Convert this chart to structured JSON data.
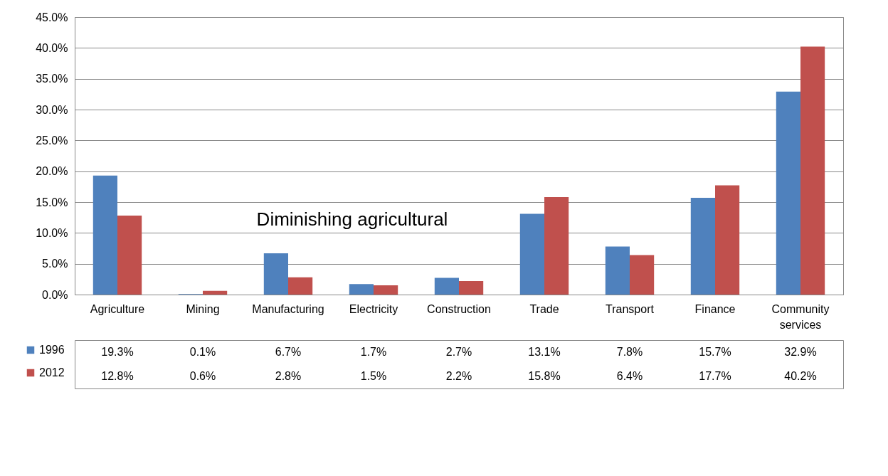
{
  "chart_data": {
    "type": "bar",
    "categories": [
      "Agriculture",
      "Mining",
      "Manufacturing",
      "Electricity",
      "Construction",
      "Trade",
      "Transport",
      "Finance",
      "Community services"
    ],
    "series": [
      {
        "name": "1996",
        "color": "#4f81bd",
        "values": [
          19.3,
          0.1,
          6.7,
          1.7,
          2.7,
          13.1,
          7.8,
          15.7,
          32.9
        ],
        "value_labels": [
          "19.3%",
          "0.1%",
          "6.7%",
          "1.7%",
          "2.7%",
          "13.1%",
          "7.8%",
          "15.7%",
          "32.9%"
        ]
      },
      {
        "name": "2012",
        "color": "#c0504d",
        "values": [
          12.8,
          0.6,
          2.8,
          1.5,
          2.2,
          15.8,
          6.4,
          17.7,
          40.2
        ],
        "value_labels": [
          "12.8%",
          "0.6%",
          "2.8%",
          "1.5%",
          "2.2%",
          "15.8%",
          "6.4%",
          "17.7%",
          "40.2%"
        ]
      }
    ],
    "ylim": [
      0,
      45
    ],
    "yticks": [
      {
        "value": 0,
        "label": "0.0%"
      },
      {
        "value": 5,
        "label": "5.0%"
      },
      {
        "value": 10,
        "label": "10.0%"
      },
      {
        "value": 15,
        "label": "15.0%"
      },
      {
        "value": 20,
        "label": "20.0%"
      },
      {
        "value": 25,
        "label": "25.0%"
      },
      {
        "value": 30,
        "label": "30.0%"
      },
      {
        "value": 35,
        "label": "35.0%"
      },
      {
        "value": 40,
        "label": "40.0%"
      },
      {
        "value": 45,
        "label": "45.0%"
      }
    ],
    "grid": "y",
    "legend": "bottom left",
    "annotations": [
      "Diminishing agricultural"
    ]
  }
}
